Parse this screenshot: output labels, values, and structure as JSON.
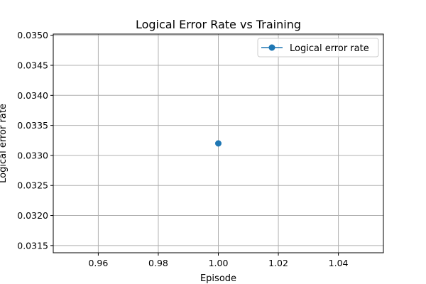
{
  "chart_data": {
    "type": "line",
    "title": "Logical Error Rate vs Training",
    "xlabel": "Episode",
    "ylabel": "Logical error rate",
    "xlim": [
      0.945,
      1.055
    ],
    "ylim": [
      0.03138,
      0.03502
    ],
    "x_ticks": [
      0.96,
      0.98,
      1.0,
      1.02,
      1.04
    ],
    "x_tick_labels": [
      "0.96",
      "0.98",
      "1.00",
      "1.02",
      "1.04"
    ],
    "y_ticks": [
      0.0315,
      0.032,
      0.0325,
      0.033,
      0.0335,
      0.034,
      0.0345,
      0.035
    ],
    "y_tick_labels": [
      "0.0315",
      "0.0320",
      "0.0325",
      "0.0330",
      "0.0335",
      "0.0340",
      "0.0345",
      "0.0350"
    ],
    "grid": true,
    "legend_position": "top-right",
    "series": [
      {
        "name": "Logical error rate",
        "color": "#1f77b4",
        "marker": "circle",
        "x": [
          1.0
        ],
        "y": [
          0.0332
        ]
      }
    ]
  }
}
